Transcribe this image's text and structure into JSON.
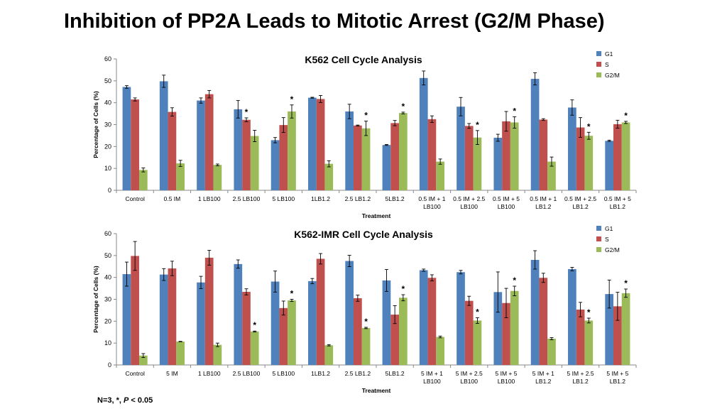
{
  "slide": {
    "title": "Inhibition of PP2A Leads to Mitotic Arrest (G2/M Phase)",
    "footnote_prefix": "N=3, *, ",
    "footnote_p": "P",
    "footnote_suffix": " < 0.05"
  },
  "colors": {
    "G1": "#4F81BD",
    "S": "#C0504D",
    "G2/M": "#9BBB59"
  },
  "chart_data": [
    {
      "type": "bar",
      "title": "K562 Cell Cycle Analysis",
      "xlabel": "Treatment",
      "ylabel": "Percentage of Cells  (%)",
      "ylim": [
        0,
        60
      ],
      "yticks": [
        0,
        10,
        20,
        30,
        40,
        50,
        60
      ],
      "legend": "top-right",
      "categories": [
        [
          "Control"
        ],
        [
          "0.5 IM"
        ],
        [
          "1 LB100"
        ],
        [
          "2.5 LB100"
        ],
        [
          "5 LB100"
        ],
        [
          "1LB1.2"
        ],
        [
          "2.5 LB1.2"
        ],
        [
          "5LB1.2"
        ],
        [
          "0.5 IM + 1",
          "LB100"
        ],
        [
          "0.5 IM + 2.5",
          "LB100"
        ],
        [
          "0.5 IM + 5",
          "LB100"
        ],
        [
          "0.5 IM + 1",
          "LB1.2"
        ],
        [
          "0.5 IM + 2.5",
          "LB1.2"
        ],
        [
          "0.5 IM + 5",
          "LB1.2"
        ]
      ],
      "series": [
        {
          "name": "G1",
          "values": [
            47.2,
            49.8,
            41.0,
            37.0,
            22.9,
            42.3,
            36.0,
            20.7,
            51.3,
            38.2,
            24.0,
            50.9,
            37.8,
            22.6
          ],
          "errors": [
            0.6,
            2.8,
            1.2,
            4.0,
            1.2,
            0.2,
            3.3,
            0.2,
            3.2,
            4.2,
            1.6,
            2.8,
            3.5,
            0.3
          ]
        },
        {
          "name": "S",
          "values": [
            41.5,
            35.8,
            43.9,
            32.2,
            29.8,
            41.7,
            29.6,
            30.7,
            32.5,
            29.4,
            31.5,
            32.3,
            28.7,
            30.2
          ],
          "errors": [
            0.7,
            1.9,
            1.7,
            0.9,
            3.4,
            1.6,
            0.2,
            1.2,
            1.5,
            1.1,
            4.5,
            0.4,
            4.5,
            1.8
          ]
        },
        {
          "name": "G2/M",
          "values": [
            9.3,
            12.3,
            11.6,
            24.8,
            36.0,
            12.1,
            28.3,
            35.3,
            13.1,
            24.1,
            31.0,
            13.1,
            24.9,
            31.0
          ],
          "errors": [
            0.9,
            1.4,
            0.4,
            2.6,
            3.0,
            1.4,
            3.3,
            0.4,
            1.2,
            3.2,
            2.6,
            2.1,
            1.6,
            0.5
          ]
        }
      ],
      "significance": [
        {
          "series": "S",
          "category": 3,
          "label": "*"
        },
        {
          "series": "G2/M",
          "category": 4,
          "label": "*"
        },
        {
          "series": "G2/M",
          "category": 6,
          "label": "*"
        },
        {
          "series": "G2/M",
          "category": 7,
          "label": "*"
        },
        {
          "series": "G2/M",
          "category": 9,
          "label": "*"
        },
        {
          "series": "G2/M",
          "category": 10,
          "label": "*"
        },
        {
          "series": "G2/M",
          "category": 12,
          "label": "*"
        },
        {
          "series": "G2/M",
          "category": 13,
          "label": "*"
        }
      ]
    },
    {
      "type": "bar",
      "title": "K562-IMR Cell Cycle Analysis",
      "xlabel": "Treatment",
      "ylabel": "Percentage of Cells (%)",
      "ylim": [
        0,
        60
      ],
      "yticks": [
        0,
        10,
        20,
        30,
        40,
        50,
        60
      ],
      "legend": "top-right",
      "categories": [
        [
          "Control"
        ],
        [
          "5 IM"
        ],
        [
          "1 LB100"
        ],
        [
          "2.5 LB100"
        ],
        [
          "5 LB100"
        ],
        [
          "1LB1.2"
        ],
        [
          "2.5 LB1.2"
        ],
        [
          "5LB1.2"
        ],
        [
          "5 IM + 1",
          "LB100"
        ],
        [
          "5 IM + 2.5",
          "LB100"
        ],
        [
          "5 IM + 5",
          "LB100"
        ],
        [
          "5 IM + 1",
          "LB1.2"
        ],
        [
          "5 IM + 2.5",
          "LB1.2"
        ],
        [
          "5 IM + 5",
          "LB1.2"
        ]
      ],
      "series": [
        {
          "name": "G1",
          "values": [
            41.5,
            41.3,
            37.7,
            46.1,
            38.1,
            38.3,
            47.5,
            38.6,
            43.3,
            42.4,
            33.3,
            48.0,
            43.8,
            32.4
          ],
          "errors": [
            5.5,
            2.7,
            2.8,
            1.9,
            4.8,
            1.2,
            2.6,
            5.0,
            0.5,
            0.8,
            9.2,
            4.2,
            0.8,
            6.4
          ]
        },
        {
          "name": "S",
          "values": [
            49.8,
            44.1,
            49.0,
            33.4,
            26.0,
            48.5,
            30.5,
            23.0,
            39.8,
            29.3,
            28.3,
            39.8,
            25.3,
            26.8
          ],
          "errors": [
            6.6,
            3.3,
            3.4,
            1.4,
            3.2,
            2.4,
            1.4,
            4.1,
            1.4,
            2.1,
            6.7,
            2.1,
            3.3,
            6.4
          ]
        },
        {
          "name": "G2/M",
          "values": [
            4.3,
            10.7,
            9.2,
            15.3,
            29.5,
            9.0,
            16.9,
            30.7,
            12.8,
            20.3,
            33.8,
            12.0,
            20.3,
            32.8
          ],
          "errors": [
            0.9,
            0.1,
            0.8,
            0.2,
            0.5,
            0.3,
            0.3,
            1.4,
            0.4,
            1.3,
            2.2,
            0.5,
            1.1,
            1.9
          ]
        }
      ],
      "significance": [
        {
          "series": "G2/M",
          "category": 3,
          "label": "*"
        },
        {
          "series": "G2/M",
          "category": 4,
          "label": "*"
        },
        {
          "series": "G2/M",
          "category": 6,
          "label": "*"
        },
        {
          "series": "G2/M",
          "category": 7,
          "label": "*"
        },
        {
          "series": "G2/M",
          "category": 9,
          "label": "*"
        },
        {
          "series": "G2/M",
          "category": 10,
          "label": "*"
        },
        {
          "series": "G2/M",
          "category": 12,
          "label": "*"
        },
        {
          "series": "G2/M",
          "category": 13,
          "label": "*"
        }
      ]
    }
  ]
}
